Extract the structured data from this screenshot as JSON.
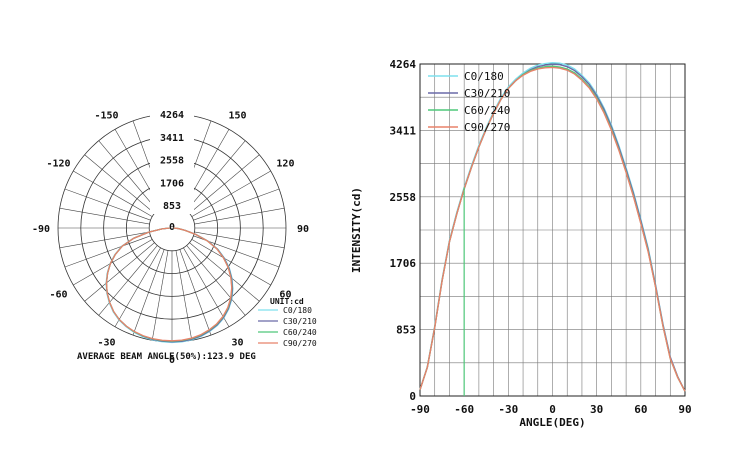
{
  "chart_data": [
    {
      "type": "polar",
      "unit_label": "UNIT:cd",
      "footer": "AVERAGE BEAM ANGLE(50%):123.9 DEG",
      "radial_ticks": [
        "853",
        "1706",
        "2558",
        "3411",
        "4264"
      ],
      "radial_values": [
        853,
        1706,
        2558,
        3411,
        4264
      ],
      "center_label": "0",
      "rmax": 4264,
      "angle_labels": [
        {
          "text": "0",
          "angle": 0
        },
        {
          "text": "30",
          "angle": 30
        },
        {
          "text": "-30",
          "angle": -30
        },
        {
          "text": "60",
          "angle": 60
        },
        {
          "text": "-60",
          "angle": -60
        },
        {
          "text": "90",
          "angle": 90
        },
        {
          "text": "-90",
          "angle": -90
        },
        {
          "text": "120",
          "angle": 120
        },
        {
          "text": "-120",
          "angle": -120
        },
        {
          "text": "150",
          "angle": 150
        },
        {
          "text": "-150",
          "angle": -150
        }
      ],
      "legend": [
        "C0/180",
        "C30/210",
        "C60/240",
        "C90/270"
      ]
    },
    {
      "type": "line",
      "xlabel": "ANGLE(DEG)",
      "ylabel": "INTENSITY(cd)",
      "x_ticks": [
        "-90",
        "-60",
        "-30",
        "0",
        "30",
        "60",
        "90"
      ],
      "x_tick_values": [
        -90,
        -60,
        -30,
        0,
        30,
        60,
        90
      ],
      "y_ticks": [
        "0",
        "853",
        "1706",
        "2558",
        "3411",
        "4264"
      ],
      "y_tick_values": [
        0,
        853,
        1706,
        2558,
        3411,
        4264
      ],
      "xlim": [
        -90,
        90
      ],
      "ylim": [
        0,
        4264
      ],
      "grid": true,
      "legend_position": "top-left",
      "x": [
        -90,
        -85,
        -80,
        -75,
        -70,
        -65,
        -60,
        -55,
        -50,
        -45,
        -40,
        -35,
        -30,
        -25,
        -20,
        -15,
        -10,
        -5,
        0,
        5,
        10,
        15,
        20,
        25,
        30,
        35,
        40,
        45,
        50,
        55,
        60,
        65,
        70,
        75,
        80,
        85,
        90
      ],
      "series": [
        {
          "name": "C0/180",
          "color": "#7fe0ee",
          "values": [
            80,
            380,
            900,
            1500,
            2000,
            2360,
            2680,
            2960,
            3220,
            3450,
            3650,
            3830,
            3970,
            4070,
            4150,
            4210,
            4250,
            4270,
            4280,
            4275,
            4250,
            4200,
            4120,
            4020,
            3880,
            3700,
            3480,
            3220,
            2930,
            2620,
            2270,
            1900,
            1430,
            930,
            500,
            250,
            60
          ]
        },
        {
          "name": "C30/210",
          "color": "#6a6aa8",
          "values": [
            80,
            370,
            880,
            1480,
            1980,
            2340,
            2660,
            2940,
            3200,
            3430,
            3630,
            3810,
            3950,
            4050,
            4130,
            4190,
            4230,
            4250,
            4260,
            4255,
            4230,
            4180,
            4100,
            4000,
            3860,
            3680,
            3460,
            3200,
            2910,
            2600,
            2250,
            1880,
            1420,
            920,
            500,
            250,
            60
          ]
        },
        {
          "name": "C60/240",
          "color": "#4fc87a",
          "values": [
            80,
            370,
            880,
            1480,
            1980,
            2340,
            2660,
            2940,
            3200,
            3430,
            3630,
            3810,
            3950,
            4050,
            4130,
            4180,
            4210,
            4230,
            4235,
            4225,
            4200,
            4150,
            4070,
            3970,
            3830,
            3650,
            3430,
            3170,
            2880,
            2570,
            2220,
            1860,
            1400,
            900,
            480,
            240,
            60
          ]
        },
        {
          "name": "C90/270",
          "color": "#e8826a",
          "values": [
            80,
            370,
            880,
            1480,
            1980,
            2340,
            2660,
            2940,
            3200,
            3430,
            3630,
            3810,
            3950,
            4050,
            4120,
            4170,
            4200,
            4215,
            4220,
            4210,
            4185,
            4135,
            4055,
            3955,
            3815,
            3635,
            3415,
            3160,
            2870,
            2560,
            2215,
            1850,
            1400,
            900,
            480,
            240,
            60
          ]
        }
      ]
    }
  ]
}
